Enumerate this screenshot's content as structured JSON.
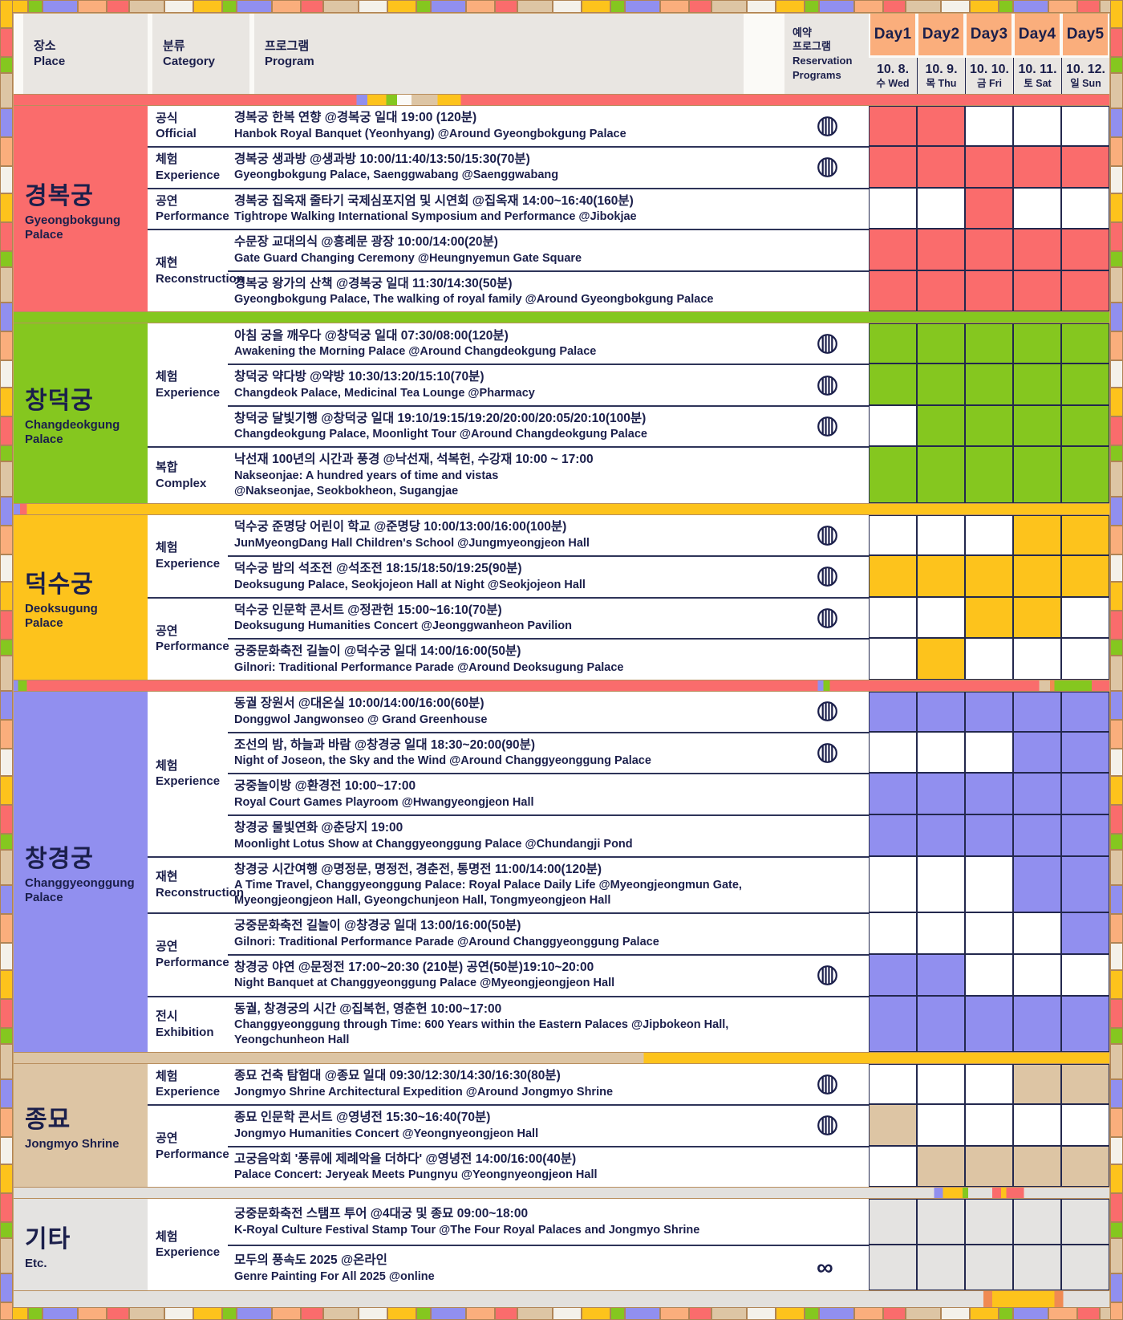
{
  "header": {
    "place": {
      "kr": "장소",
      "en": "Place"
    },
    "category": {
      "kr": "분류",
      "en": "Category"
    },
    "program": {
      "kr": "프로그램",
      "en": "Program"
    },
    "reservation": {
      "kr": "예약",
      "kr2": "프로그램",
      "en": "Reservation Programs"
    },
    "days": [
      {
        "label": "Day1",
        "date": "10. 8.",
        "dow": "수 Wed"
      },
      {
        "label": "Day2",
        "date": "10. 9.",
        "dow": "목 Thu"
      },
      {
        "label": "Day3",
        "date": "10. 10.",
        "dow": "금 Fri"
      },
      {
        "label": "Day4",
        "date": "10. 11.",
        "dow": "토 Sat"
      },
      {
        "label": "Day5",
        "date": "10. 12.",
        "dow": "일 Sun"
      }
    ]
  },
  "icons": {
    "reservation": "striped-circle",
    "infinity": "∞"
  },
  "colors": {
    "day_header": "#FAAE7C",
    "navy_text": "#1B1F4B",
    "gyeongbokgung": "#FA6C6C",
    "changdeokgung": "#85C71F",
    "deoksugung": "#FDC31C",
    "changgyeonggung": "#918FEF",
    "jongmyo": "#DDC5A4",
    "etc": "#E4E3E1"
  },
  "footer_band": [
    [
      "#E2E0DD",
      0,
      88.5
    ],
    [
      "#F08A52",
      88.5,
      89.3
    ],
    [
      "#FDC31C",
      89.3,
      95
    ],
    [
      "#F08A52",
      95,
      95.8
    ],
    [
      "#E2E0DD",
      95.8,
      100
    ]
  ],
  "sections": [
    {
      "id": "gyeongbokgung",
      "place_kr": "경복궁",
      "place_en": "Gyeongbokgung Palace",
      "color": "#FA6C6C",
      "band": [
        [
          "#FA6C6C",
          0,
          31.3
        ],
        [
          "#918FEF",
          31.3,
          32.3
        ],
        [
          "#FDC31C",
          32.3,
          34
        ],
        [
          "#85C71F",
          34,
          35
        ],
        [
          "#FBFAF7",
          35,
          36.3
        ],
        [
          "#DDC5A4",
          36.3,
          38.7
        ],
        [
          "#FDC31C",
          38.7,
          40.8
        ],
        [
          "#FA6C6C",
          40.8,
          100
        ]
      ],
      "groups": [
        {
          "cat_kr": "공식",
          "cat_en": "Official",
          "rows": [
            {
              "kr": "경복궁 한복 연향 @경복궁 일대 19:00 (120분)",
              "en": "Hanbok Royal Banquet (Yeonhyang) @Around Gyeongbokgung Palace",
              "res": "circle",
              "days": [
                1,
                1,
                0,
                0,
                0
              ]
            }
          ]
        },
        {
          "cat_kr": "체험",
          "cat_en": "Experience",
          "rows": [
            {
              "kr": "경복궁 생과방 @생과방 10:00/11:40/13:50/15:30(70분)",
              "en": "Gyeongbokgung Palace, Saenggwabang @Saenggwabang",
              "res": "circle",
              "days": [
                1,
                1,
                1,
                1,
                1
              ]
            }
          ]
        },
        {
          "cat_kr": "공연",
          "cat_en": "Performance",
          "rows": [
            {
              "kr": "경복궁 집옥재 줄타기 국제심포지엄 및 시연회 @집옥재 14:00~16:40(160분)",
              "en": "Tightrope Walking International Symposium and Performance @Jibokjae",
              "res": null,
              "days": [
                0,
                0,
                1,
                0,
                0
              ]
            }
          ]
        },
        {
          "cat_kr": "재현",
          "cat_en": "Reconstruction",
          "rows": [
            {
              "kr": "수문장 교대의식 @흥례문 광장 10:00/14:00(20분)",
              "en": "Gate Guard Changing Ceremony @Heungnyemun Gate Square",
              "res": null,
              "days": [
                1,
                1,
                1,
                1,
                1
              ]
            },
            {
              "kr": "경복궁 왕가의 산책 @경복궁 일대 11:30/14:30(50분)",
              "en": "Gyeongbokgung Palace, The walking of royal family @Around Gyeongbokgung Palace",
              "res": null,
              "days": [
                1,
                1,
                1,
                1,
                1
              ]
            }
          ]
        }
      ]
    },
    {
      "id": "changdeokgung",
      "place_kr": "창덕궁",
      "place_en": "Changdeokgung Palace",
      "color": "#85C71F",
      "band": [
        [
          "#85C71F",
          0,
          100
        ]
      ],
      "groups": [
        {
          "cat_kr": "체험",
          "cat_en": "Experience",
          "rows": [
            {
              "kr": "아침 궁을 깨우다 @창덕궁 일대 07:30/08:00(120분)",
              "en": "Awakening the Morning Palace @Around Changdeokgung Palace",
              "res": "circle",
              "days": [
                1,
                1,
                1,
                1,
                1
              ]
            },
            {
              "kr": "창덕궁 약다방 @약방 10:30/13:20/15:10(70분)",
              "en": "Changdeok Palace, Medicinal Tea Lounge @Pharmacy",
              "res": "circle",
              "days": [
                1,
                1,
                1,
                1,
                1
              ]
            },
            {
              "kr": "창덕궁 달빛기행 @창덕궁 일대 19:10/19:15/19:20/20:00/20:05/20:10(100분)",
              "en": "Changdeokgung Palace, Moonlight Tour @Around Changdeokgung Palace",
              "res": "circle",
              "days": [
                0,
                1,
                1,
                1,
                1
              ]
            }
          ]
        },
        {
          "cat_kr": "복합",
          "cat_en": "Complex",
          "rows": [
            {
              "kr": "낙선재 100년의 시간과 풍경 @낙선재, 석복헌, 수강재 10:00 ~ 17:00",
              "en": "Nakseonjae: A hundred years of time and vistas",
              "en2": "@Nakseonjae, Seokbokheon, Sugangjae",
              "res": null,
              "days": [
                1,
                1,
                1,
                1,
                1
              ]
            }
          ]
        }
      ]
    },
    {
      "id": "deoksugung",
      "place_kr": "덕수궁",
      "place_en": "Deoksugung Palace",
      "color": "#FDC31C",
      "band": [
        [
          "#918FEF",
          0,
          0.6
        ],
        [
          "#FA6C6C",
          0.6,
          1.2
        ],
        [
          "#FDC31C",
          1.2,
          100
        ]
      ],
      "groups": [
        {
          "cat_kr": "체험",
          "cat_en": "Experience",
          "rows": [
            {
              "kr": "덕수궁 준명당 어린이 학교 @준명당 10:00/13:00/16:00(100분)",
              "en": "JunMyeongDang Hall Children's School @Jungmyeongjeon Hall",
              "res": "circle",
              "days": [
                0,
                0,
                0,
                1,
                1
              ]
            },
            {
              "kr": "덕수궁 밤의 석조전 @석조전 18:15/18:50/19:25(90분)",
              "en": "Deoksugung Palace, Seokjojeon Hall at Night @Seokjojeon Hall",
              "res": "circle",
              "days": [
                1,
                1,
                1,
                1,
                1
              ]
            }
          ]
        },
        {
          "cat_kr": "공연",
          "cat_en": "Performance",
          "rows": [
            {
              "kr": "덕수궁 인문학 콘서트 @정관헌 15:00~16:10(70분)",
              "en": "Deoksugung Humanities Concert @Jeonggwanheon Pavilion",
              "res": "circle",
              "days": [
                0,
                0,
                1,
                1,
                0
              ]
            },
            {
              "kr": "궁중문화축전 길놀이 @덕수궁 일대 14:00/16:00(50분)",
              "en": "Gilnori: Traditional Performance Parade @Around Deoksugung Palace",
              "res": null,
              "days": [
                0,
                1,
                0,
                0,
                0
              ]
            }
          ]
        }
      ]
    },
    {
      "id": "changgyeonggung",
      "place_kr": "창경궁",
      "place_en": "Changgyeonggung Palace",
      "color": "#918FEF",
      "band": [
        [
          "#918FEF",
          0,
          0.4
        ],
        [
          "#85C71F",
          0.4,
          1.2
        ],
        [
          "#FA6C6C",
          1.2,
          73.4
        ],
        [
          "#918FEF",
          73.4,
          73.9
        ],
        [
          "#85C71F",
          73.9,
          74.5
        ],
        [
          "#FA6C6C",
          74.5,
          93.6
        ],
        [
          "#DDC5A4",
          93.6,
          94.6
        ],
        [
          "#F08A52",
          94.6,
          95
        ],
        [
          "#85C71F",
          95,
          98.4
        ],
        [
          "#FA6C6C",
          98.4,
          100
        ]
      ],
      "groups": [
        {
          "cat_kr": "체험",
          "cat_en": "Experience",
          "rows": [
            {
              "kr": "동궐 장원서 @대온실 10:00/14:00/16:00(60분)",
              "en": "Donggwol Jangwonseo @ Grand Greenhouse",
              "res": "circle",
              "days": [
                1,
                1,
                1,
                1,
                1
              ]
            },
            {
              "kr": "조선의 밤, 하늘과 바람 @창경궁 일대 18:30~20:00(90분)",
              "en": "Night of Joseon, the Sky and the Wind @Around Changgyeonggung Palace",
              "res": "circle",
              "days": [
                0,
                0,
                0,
                1,
                1
              ]
            },
            {
              "kr": "궁중놀이방 @환경전 10:00~17:00",
              "en": "Royal Court Games Playroom @Hwangyeongjeon Hall",
              "res": null,
              "days": [
                1,
                1,
                1,
                1,
                1
              ]
            },
            {
              "kr": "창경궁 물빛연화 @춘당지 19:00",
              "en": "Moonlight Lotus Show at Changgyeonggung Palace @Chundangji Pond",
              "res": null,
              "days": [
                1,
                1,
                1,
                1,
                1
              ]
            }
          ]
        },
        {
          "cat_kr": "재현",
          "cat_en": "Reconstruction",
          "rows": [
            {
              "kr": "창경궁 시간여행 @명정문, 명정전, 경춘전, 통명전 11:00/14:00(120분)",
              "en": "A Time Travel, Changgyeonggung Palace: Royal Palace Daily Life @Myeongjeongmun Gate,",
              "en2": "Myeongjeongjeon Hall, Gyeongchunjeon Hall, Tongmyeongjeon Hall",
              "res": null,
              "days": [
                0,
                0,
                0,
                1,
                1
              ]
            }
          ]
        },
        {
          "cat_kr": "공연",
          "cat_en": "Performance",
          "rows": [
            {
              "kr": "궁중문화축전 길놀이 @창경궁 일대 13:00/16:00(50분)",
              "en": "Gilnori: Traditional Performance Parade @Around Changgyeonggung Palace",
              "res": null,
              "days": [
                0,
                0,
                0,
                0,
                1
              ]
            },
            {
              "kr": "창경궁 야연 @문정전 17:00~20:30 (210분) 공연(50분)19:10~20:00",
              "en": "Night Banquet at Changgyeonggung Palace @Myeongjeongjeon Hall",
              "res": "circle",
              "days": [
                1,
                1,
                0,
                0,
                0
              ]
            }
          ]
        },
        {
          "cat_kr": "전시",
          "cat_en": "Exhibition",
          "rows": [
            {
              "kr": "동궐, 창경궁의 시간 @집복헌, 영춘헌 10:00~17:00",
              "en": "Changgyeonggung through Time: 600 Years within the Eastern Palaces @Jipbokeon Hall,",
              "en2": "Yeongchunheon Hall",
              "res": null,
              "days": [
                1,
                1,
                1,
                1,
                1
              ]
            }
          ]
        }
      ]
    },
    {
      "id": "jongmyo",
      "place_kr": "종묘",
      "place_en": "Jongmyo Shrine",
      "color": "#DDC5A4",
      "band": [
        [
          "#DDC5A4",
          0,
          57.5
        ],
        [
          "#FDC31C",
          57.5,
          100
        ]
      ],
      "groups": [
        {
          "cat_kr": "체험",
          "cat_en": "Experience",
          "rows": [
            {
              "kr": "종묘 건축 탐험대 @종묘 일대 09:30/12:30/14:30/16:30(80분)",
              "en": "Jongmyo Shrine Architectural Expedition @Around Jongmyo Shrine",
              "res": "circle",
              "days": [
                0,
                0,
                0,
                1,
                1
              ]
            }
          ]
        },
        {
          "cat_kr": "공연",
          "cat_en": "Performance",
          "rows": [
            {
              "kr": "종묘 인문학 콘서트 @영녕전 15:30~16:40(70분)",
              "en": "Jongmyo Humanities Concert @Yeongnyeongjeon Hall",
              "res": "circle",
              "days": [
                1,
                0,
                0,
                0,
                0
              ]
            },
            {
              "kr": "고궁음악회 '풍류에 제례악을 더하다' @영녕전 14:00/16:00(40분)",
              "en": "Palace Concert: Jeryeak Meets Pungnyu @Yeongnyeongjeon Hall",
              "res": null,
              "days": [
                0,
                1,
                1,
                1,
                1
              ]
            }
          ]
        }
      ]
    },
    {
      "id": "etc",
      "place_kr": "기타",
      "place_en": "Etc.",
      "color": "#E4E3E1",
      "band": [
        [
          "#E2E0DD",
          0,
          84
        ],
        [
          "#918FEF",
          84,
          84.8
        ],
        [
          "#FDC31C",
          84.8,
          86.6
        ],
        [
          "#85C71F",
          86.6,
          87.1
        ],
        [
          "#E2E0DD",
          87.1,
          89.3
        ],
        [
          "#FA6C6C",
          89.3,
          90.1
        ],
        [
          "#FDC31C",
          90.1,
          90.6
        ],
        [
          "#FA6C6C",
          90.6,
          92.2
        ],
        [
          "#E2E0DD",
          92.2,
          100
        ]
      ],
      "groups": [
        {
          "cat_kr": "체험",
          "cat_en": "Experience",
          "rows": [
            {
              "kr": "궁중문화축전 스탬프 투어 @4대궁 및 종묘 09:00~18:00",
              "en": "K-Royal Culture Festival Stamp Tour @The Four Royal Palaces and Jongmyo Shrine",
              "res": null,
              "days": [
                1,
                1,
                1,
                1,
                1
              ]
            },
            {
              "kr": "모두의 풍속도 2025 @온라인",
              "en": "Genre Painting For All 2025 @online",
              "res": "infinity",
              "days": [
                1,
                1,
                1,
                1,
                1
              ]
            }
          ]
        }
      ]
    }
  ]
}
